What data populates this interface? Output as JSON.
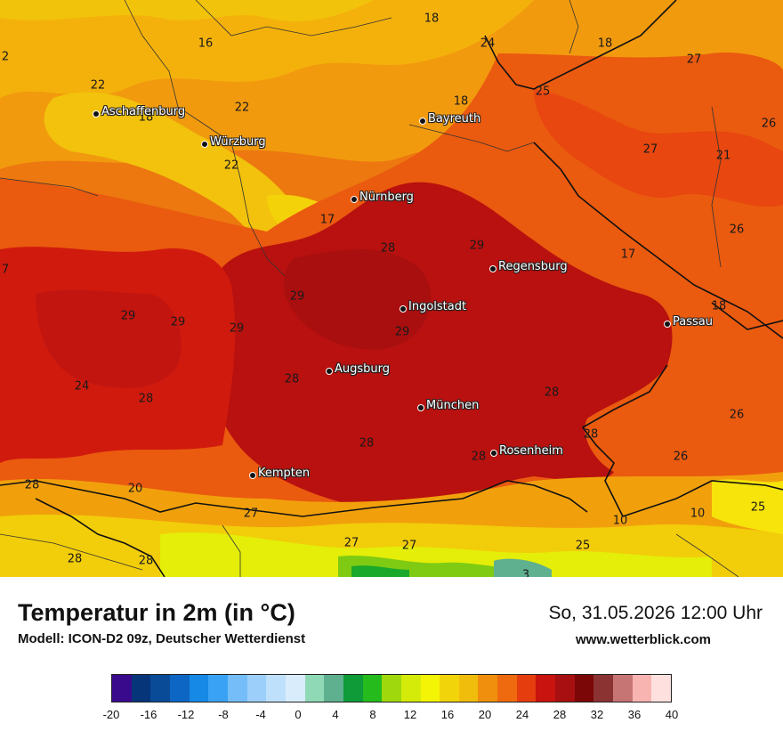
{
  "map": {
    "cities": [
      {
        "name": "Aschaffenburg"
      },
      {
        "name": "Würzburg"
      },
      {
        "name": "Bayreuth"
      },
      {
        "name": "Nürnberg"
      },
      {
        "name": "Regensburg"
      },
      {
        "name": "Ingolstadt"
      },
      {
        "name": "Passau"
      },
      {
        "name": "Augsburg"
      },
      {
        "name": "München"
      },
      {
        "name": "Rosenheim"
      },
      {
        "name": "Kempten"
      }
    ],
    "value_labels": [
      "2",
      "16",
      "18",
      "24",
      "18",
      "27",
      "22",
      "18",
      "22",
      "18",
      "25",
      "26",
      "27",
      "21",
      "22",
      "17",
      "28",
      "29",
      "26",
      "7",
      "17",
      "29",
      "18",
      "29",
      "29",
      "29",
      "29",
      "24",
      "28",
      "28",
      "28",
      "28",
      "26",
      "28",
      "28",
      "26",
      "28",
      "20",
      "27",
      "10",
      "10",
      "25",
      "28",
      "28",
      "27",
      "27",
      "25",
      "3"
    ]
  },
  "footer": {
    "title": "Temperatur in 2m (in °C)",
    "subtitle": "Modell: ICON-D2 09z, Deutscher Wetterdienst",
    "datetime": "So, 31.05.2026 12:00 Uhr",
    "website": "www.wetterblick.com"
  },
  "legend": {
    "colors": [
      "#3a0a8c",
      "#07357a",
      "#0a4b98",
      "#0d66c4",
      "#1688e6",
      "#3aa2f5",
      "#75bdf8",
      "#9ccff9",
      "#bfe0fb",
      "#d9ecfc",
      "#8fd9b6",
      "#5fb08f",
      "#0e9b38",
      "#25bb1d",
      "#9fd80c",
      "#d4ea08",
      "#f4f506",
      "#f1d50a",
      "#f1bd0c",
      "#f08f0d",
      "#ef6a0e",
      "#e63d0f",
      "#c8130f",
      "#a80f10",
      "#7c0707",
      "#8b3332",
      "#c77474",
      "#f7b4b0",
      "#fee1df"
    ],
    "ticks": [
      "-20",
      "-16",
      "-12",
      "-8",
      "-4",
      "0",
      "4",
      "8",
      "12",
      "16",
      "20",
      "24",
      "28",
      "32",
      "36",
      "40"
    ]
  }
}
